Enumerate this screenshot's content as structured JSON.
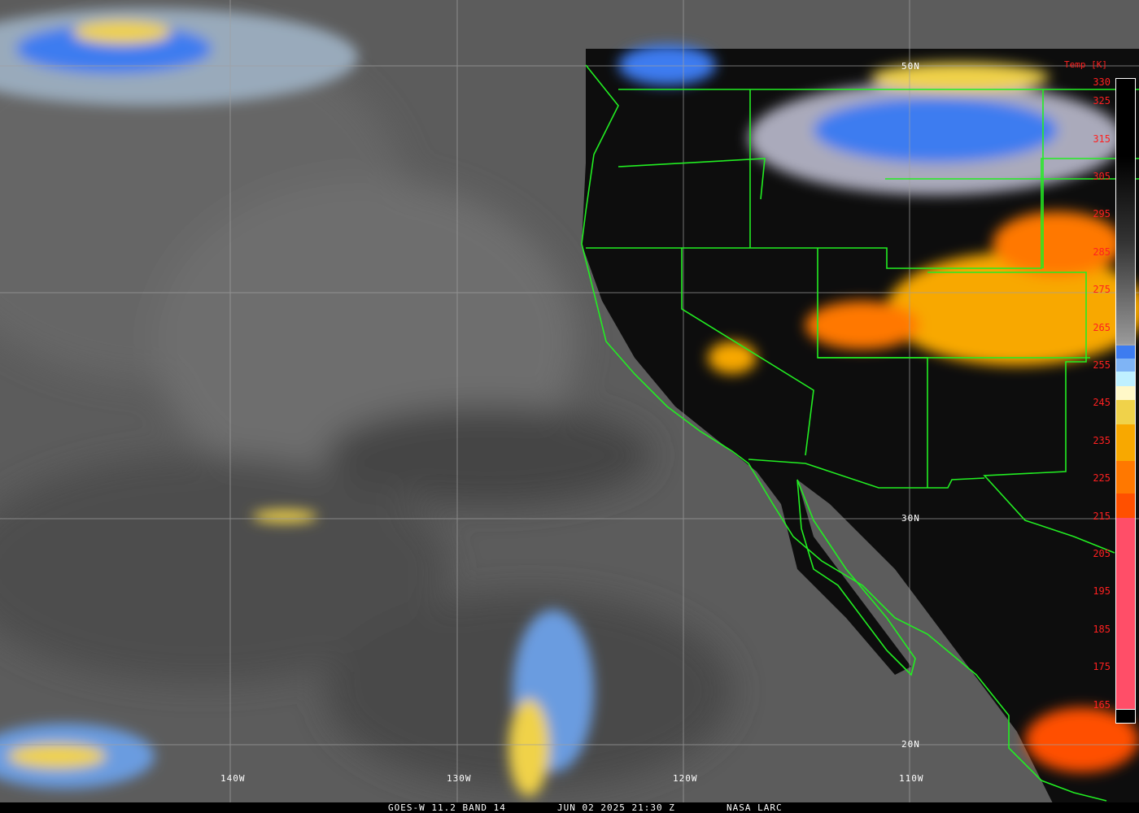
{
  "footer": {
    "satellite": "GOES-W 11.2 BAND 14",
    "datetime": "JUN 02 2025 21:30 Z",
    "source": "NASA LARC"
  },
  "colorbar": {
    "title": "Temp [K]",
    "labels": [
      "330",
      "325",
      "315",
      "305",
      "295",
      "285",
      "275",
      "265",
      "255",
      "245",
      "235",
      "225",
      "215",
      "205",
      "195",
      "185",
      "175",
      "165"
    ],
    "colors": {
      "cold_blue": "#3d7cf0",
      "light_blue": "#7fb4f5",
      "pale_cyan": "#bff0ff",
      "cream": "#fff8c8",
      "yellow": "#f0d24a",
      "amber": "#f8a800",
      "orange": "#ff7800",
      "red_orange": "#ff5000",
      "pink_red": "#ff4e68"
    }
  },
  "grid": {
    "longitudes": [
      "140W",
      "130W",
      "120W",
      "110W"
    ],
    "latitudes": [
      "50N",
      "30N",
      "20N"
    ]
  },
  "colors": {
    "borders": "#22ee22",
    "grid": "#a0a0a0",
    "ocean": "#5c5c5c",
    "land": "#0c0c0c"
  }
}
